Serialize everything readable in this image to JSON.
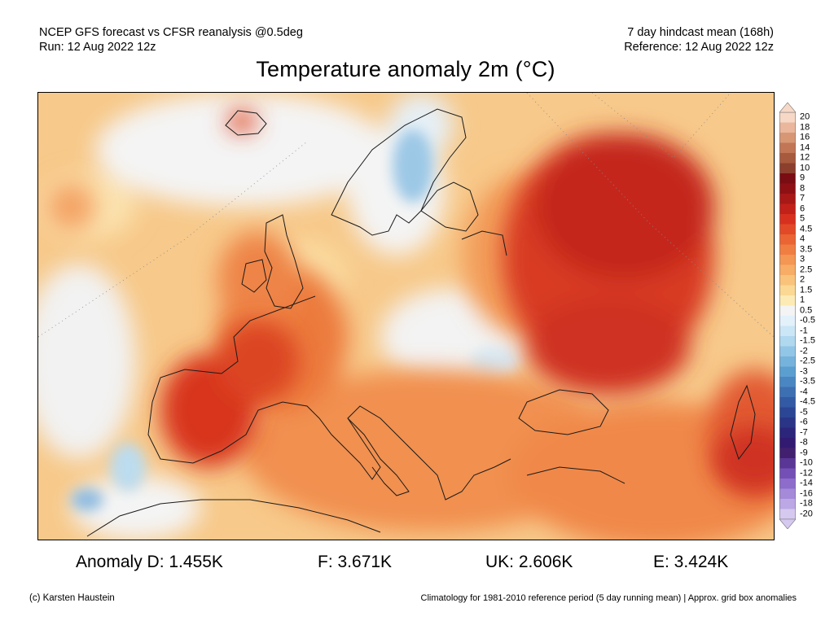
{
  "header": {
    "line1_left": "NCEP GFS forecast vs CFSR reanalysis @0.5deg",
    "line2_left": "Run: 12 Aug 2022 12z",
    "line1_right": "7 day hindcast mean (168h)",
    "line2_right": "Reference: 12 Aug 2022 12z"
  },
  "title": "Temperature anomaly 2m (°C)",
  "colorbar": {
    "labels": [
      "20",
      "18",
      "16",
      "14",
      "12",
      "10",
      "9",
      "8",
      "7",
      "6",
      "5",
      "4.5",
      "4",
      "3.5",
      "3",
      "2.5",
      "2",
      "1.5",
      "1",
      "0.5",
      "-0.5",
      "-1",
      "-1.5",
      "-2",
      "-2.5",
      "-3",
      "-3.5",
      "-4",
      "-4.5",
      "-5",
      "-6",
      "-7",
      "-8",
      "-9",
      "-10",
      "-12",
      "-14",
      "-16",
      "-18",
      "-20"
    ],
    "colors": [
      "#f7d8c6",
      "#eab79c",
      "#d79775",
      "#c27656",
      "#a85a3e",
      "#8c3f2c",
      "#7a0c13",
      "#8e1014",
      "#a81816",
      "#c22119",
      "#d8301e",
      "#e24a27",
      "#ea6434",
      "#f07e42",
      "#f49654",
      "#f7ad66",
      "#f9c37b",
      "#fbd894",
      "#fdebb5",
      "#f4f4f4",
      "#e3f1fb",
      "#cbe6f6",
      "#b0d8ef",
      "#92c6e6",
      "#76b3dc",
      "#5b9fd0",
      "#4a87c2",
      "#3d6fb3",
      "#335aa4",
      "#2b4694",
      "#2a3588",
      "#2b257c",
      "#321a72",
      "#43206f",
      "#5a3696",
      "#7450b6",
      "#8d6ccc",
      "#a58ad9",
      "#bca8e5",
      "#d6c9f0"
    ]
  },
  "map": {
    "land_fill": "#f2a465",
    "warm_core": "#c4261c",
    "coast_color": "#1a1a1a"
  },
  "stats": {
    "anomaly_d": "Anomaly D: 1.455K",
    "f": "F: 3.671K",
    "uk": "UK: 2.606K",
    "e": "E: 3.424K"
  },
  "footer": {
    "left": "(c) Karsten Haustein",
    "right": "Climatology for 1981-2010 reference period (5 day running mean) | Approx. grid box anomalies"
  }
}
